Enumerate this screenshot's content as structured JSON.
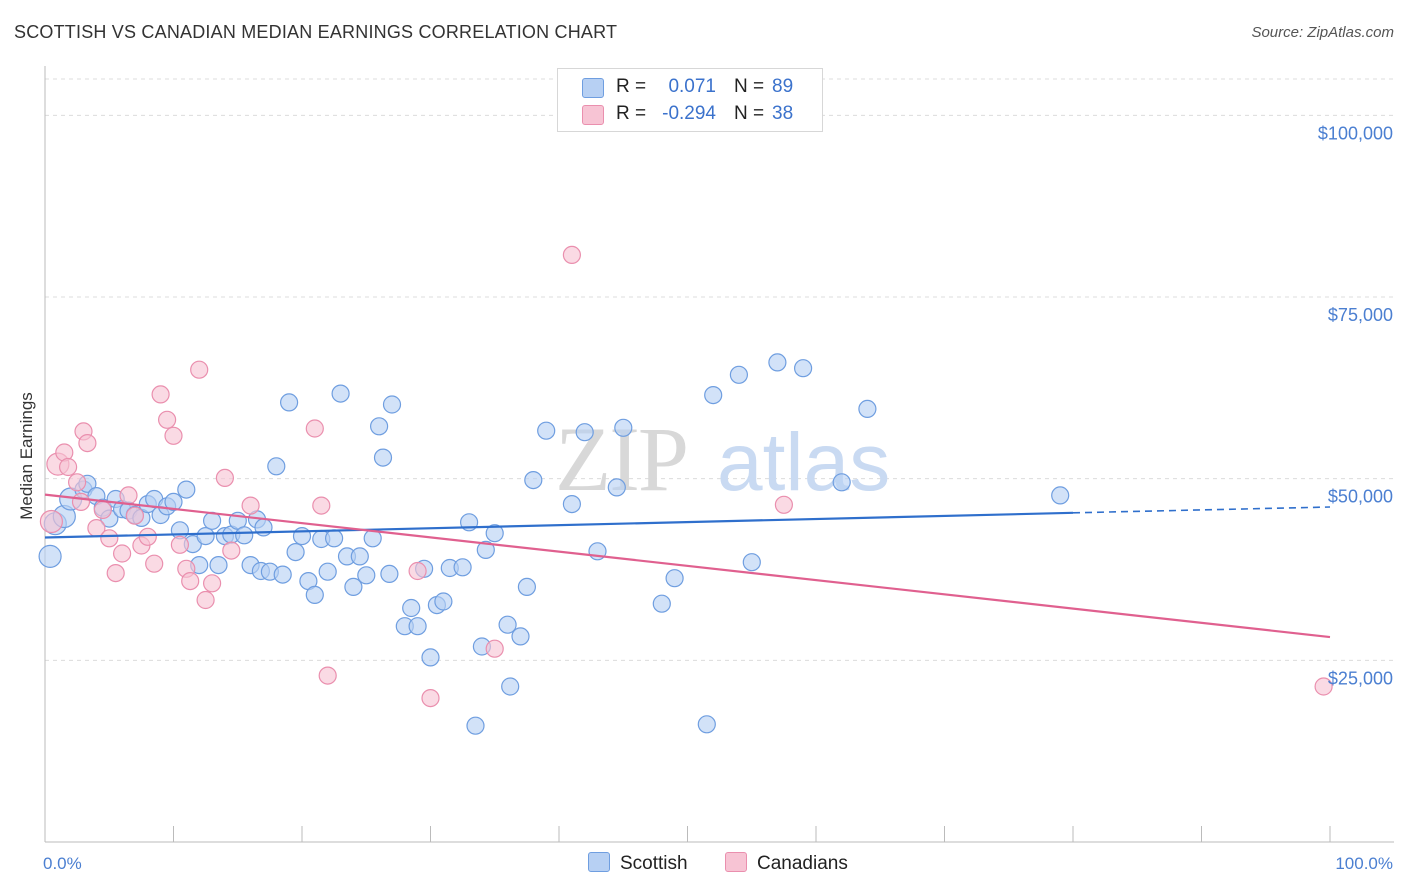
{
  "title": "SCOTTISH VS CANADIAN MEDIAN EARNINGS CORRELATION CHART",
  "source": "Source: ZipAtlas.com",
  "watermark": {
    "part1": "ZIP",
    "part2": "atlas"
  },
  "colors": {
    "scottish_fill": "#b7d0f3",
    "scottish_stroke": "#6f9ee0",
    "scottish_line": "#2f6fcc",
    "canadian_fill": "#f7c4d4",
    "canadian_stroke": "#ea8fae",
    "canadian_line": "#e0608f",
    "tick_text": "#4b7fd1",
    "grid": "#dcdcdc"
  },
  "legend": {
    "rows": [
      {
        "r_label": "R =",
        "r_value": "0.071",
        "n_label": "N =",
        "n_value": "89"
      },
      {
        "r_label": "R =",
        "r_value": "-0.294",
        "n_label": "N =",
        "n_value": "38"
      }
    ]
  },
  "bottom_legend": {
    "scottish": "Scottish",
    "canadians": "Canadians"
  },
  "chart_data": {
    "type": "scatter",
    "title": "SCOTTISH VS CANADIAN MEDIAN EARNINGS CORRELATION CHART",
    "xlabel": "",
    "ylabel": "Median Earnings",
    "xlim": [
      0,
      100
    ],
    "ylim": [
      0,
      105000
    ],
    "x_tick_labels": [
      "0.0%",
      "100.0%"
    ],
    "y_ticks": [
      25000,
      50000,
      75000,
      100000
    ],
    "y_tick_labels": [
      "$25,000",
      "$50,000",
      "$75,000",
      "$100,000"
    ],
    "grid": true,
    "series": [
      {
        "name": "Scottish",
        "r": 0.071,
        "n": 89,
        "trend": {
          "x": [
            0,
            80
          ],
          "y": [
            41900,
            45300
          ],
          "dashed_to": [
            100,
            46100
          ]
        },
        "points": [
          [
            0.4,
            39300,
            1
          ],
          [
            0.8,
            43800,
            1
          ],
          [
            1.5,
            44800,
            1
          ],
          [
            2,
            47200,
            1
          ],
          [
            3,
            48500,
            0
          ],
          [
            3.3,
            49300,
            0
          ],
          [
            4,
            47600,
            0
          ],
          [
            4.5,
            46000,
            0
          ],
          [
            5,
            44500,
            0
          ],
          [
            5.5,
            47200,
            0
          ],
          [
            6,
            45800,
            0
          ],
          [
            6.5,
            45600,
            0
          ],
          [
            7,
            45000,
            0
          ],
          [
            7.5,
            44600,
            0
          ],
          [
            8,
            46500,
            0
          ],
          [
            8.5,
            47200,
            0
          ],
          [
            9,
            45000,
            0
          ],
          [
            9.5,
            46200,
            0
          ],
          [
            10,
            46800,
            0
          ],
          [
            10.5,
            42900,
            0
          ],
          [
            11,
            48500,
            0
          ],
          [
            11.5,
            41000,
            0
          ],
          [
            12,
            38100,
            0
          ],
          [
            12.5,
            42100,
            0
          ],
          [
            13,
            44200,
            0
          ],
          [
            13.5,
            38100,
            0
          ],
          [
            14,
            42100,
            0
          ],
          [
            14.5,
            42300,
            0
          ],
          [
            15,
            44200,
            0
          ],
          [
            15.5,
            42200,
            0
          ],
          [
            16,
            38100,
            0
          ],
          [
            16.5,
            44400,
            0
          ],
          [
            16.8,
            37300,
            0
          ],
          [
            17,
            43300,
            0
          ],
          [
            17.5,
            37200,
            0
          ],
          [
            18,
            51700,
            0
          ],
          [
            18.5,
            36800,
            0
          ],
          [
            19,
            60500,
            0
          ],
          [
            19.5,
            39900,
            0
          ],
          [
            20,
            42100,
            0
          ],
          [
            20.5,
            35900,
            0
          ],
          [
            21,
            34000,
            0
          ],
          [
            21.5,
            41700,
            0
          ],
          [
            22,
            37200,
            0
          ],
          [
            22.5,
            41800,
            0
          ],
          [
            23,
            61700,
            0
          ],
          [
            23.5,
            39300,
            0
          ],
          [
            24,
            35100,
            0
          ],
          [
            24.5,
            39300,
            0
          ],
          [
            25,
            36700,
            0
          ],
          [
            25.5,
            41800,
            0
          ],
          [
            26,
            57200,
            0
          ],
          [
            26.3,
            52900,
            0
          ],
          [
            26.8,
            36900,
            0
          ],
          [
            27,
            60200,
            0
          ],
          [
            28,
            29700,
            0
          ],
          [
            28.5,
            32200,
            0
          ],
          [
            29,
            29700,
            0
          ],
          [
            29.5,
            37600,
            0
          ],
          [
            30,
            25400,
            0
          ],
          [
            30.5,
            32600,
            0
          ],
          [
            31,
            33100,
            0
          ],
          [
            31.5,
            37700,
            0
          ],
          [
            32.5,
            37800,
            0
          ],
          [
            33,
            44000,
            0
          ],
          [
            33.5,
            16000,
            0
          ],
          [
            34,
            26900,
            0
          ],
          [
            34.3,
            40200,
            0
          ],
          [
            35,
            42500,
            0
          ],
          [
            36,
            29900,
            0
          ],
          [
            36.2,
            21400,
            0
          ],
          [
            37,
            28300,
            0
          ],
          [
            37.5,
            35100,
            0
          ],
          [
            38,
            49800,
            0
          ],
          [
            39,
            56600,
            0
          ],
          [
            41,
            46500,
            0
          ],
          [
            42,
            56400,
            0
          ],
          [
            43,
            40000,
            0
          ],
          [
            44.5,
            48800,
            0
          ],
          [
            45,
            57000,
            0
          ],
          [
            48,
            32800,
            0
          ],
          [
            49,
            36300,
            0
          ],
          [
            51.5,
            16200,
            0
          ],
          [
            52,
            61500,
            0
          ],
          [
            54,
            64300,
            0
          ],
          [
            55,
            38500,
            0
          ],
          [
            57,
            66000,
            0
          ],
          [
            59,
            65200,
            0
          ],
          [
            62,
            49500,
            0
          ],
          [
            64,
            59600,
            0
          ],
          [
            79,
            47700,
            0
          ]
        ]
      },
      {
        "name": "Canadians",
        "r": -0.294,
        "n": 38,
        "trend": {
          "x": [
            0,
            100
          ],
          "y": [
            47800,
            28200
          ]
        },
        "points": [
          [
            0.5,
            44100,
            1
          ],
          [
            1,
            52000,
            1
          ],
          [
            1.5,
            53600,
            0
          ],
          [
            1.8,
            51600,
            0
          ],
          [
            2.5,
            49500,
            0
          ],
          [
            2.8,
            46800,
            0
          ],
          [
            3,
            56500,
            0
          ],
          [
            3.3,
            54900,
            0
          ],
          [
            4,
            43200,
            0
          ],
          [
            4.5,
            45700,
            0
          ],
          [
            5,
            41800,
            0
          ],
          [
            5.5,
            37000,
            0
          ],
          [
            6,
            39700,
            0
          ],
          [
            6.5,
            47700,
            0
          ],
          [
            7,
            44900,
            0
          ],
          [
            7.5,
            40800,
            0
          ],
          [
            8,
            42000,
            0
          ],
          [
            8.5,
            38300,
            0
          ],
          [
            9,
            61600,
            0
          ],
          [
            9.5,
            58100,
            0
          ],
          [
            10,
            55900,
            0
          ],
          [
            10.5,
            40900,
            0
          ],
          [
            11,
            37600,
            0
          ],
          [
            11.3,
            35900,
            0
          ],
          [
            12,
            65000,
            0
          ],
          [
            12.5,
            33300,
            0
          ],
          [
            13,
            35600,
            0
          ],
          [
            14,
            50100,
            0
          ],
          [
            14.5,
            40100,
            0
          ],
          [
            16,
            46300,
            0
          ],
          [
            21,
            56900,
            0
          ],
          [
            21.5,
            46300,
            0
          ],
          [
            22,
            22900,
            0
          ],
          [
            29,
            37300,
            0
          ],
          [
            30,
            19800,
            0
          ],
          [
            35,
            26600,
            0
          ],
          [
            41,
            80800,
            0
          ],
          [
            57.5,
            46400,
            0
          ],
          [
            99.5,
            21400,
            0
          ]
        ]
      }
    ]
  }
}
